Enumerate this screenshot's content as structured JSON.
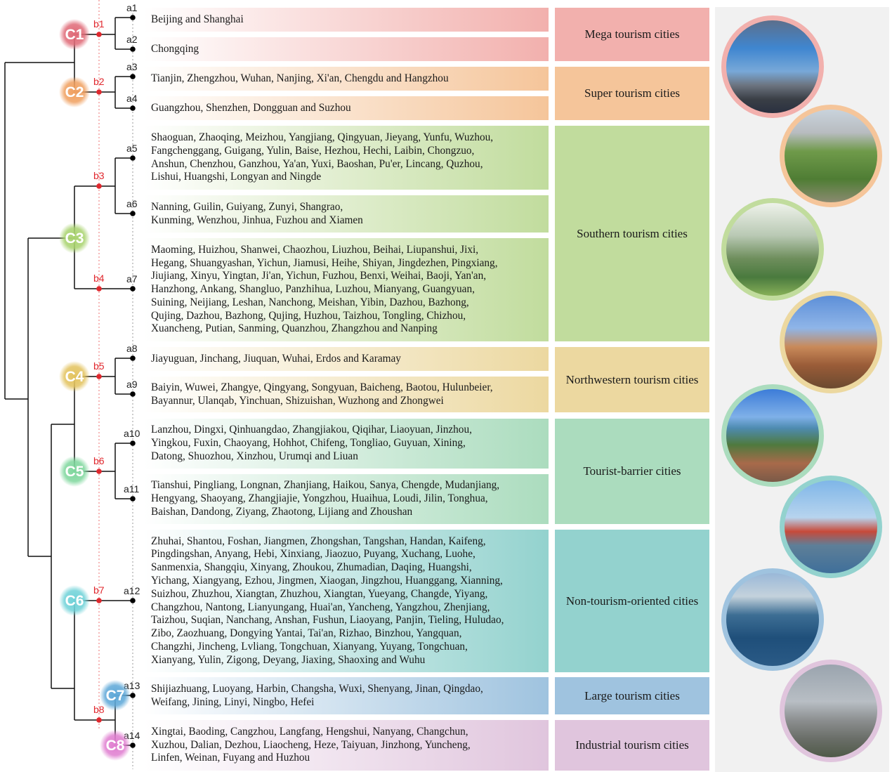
{
  "clusters": [
    {
      "id": "C1",
      "color": "#e06b78"
    },
    {
      "id": "C2",
      "color": "#f0a060"
    },
    {
      "id": "C3",
      "color": "#a9d36f"
    },
    {
      "id": "C4",
      "color": "#e3c35f"
    },
    {
      "id": "C5",
      "color": "#7fd79d"
    },
    {
      "id": "C6",
      "color": "#6fd2d8"
    },
    {
      "id": "C7",
      "color": "#5ea8d8"
    },
    {
      "id": "C8",
      "color": "#e07ed0"
    }
  ],
  "branch_labels": [
    "b1",
    "b2",
    "b3",
    "b4",
    "b5",
    "b6",
    "b7",
    "b8"
  ],
  "rows": [
    {
      "id": "a1",
      "cat": 0,
      "text": "Beijing and Shanghai"
    },
    {
      "id": "a2",
      "cat": 0,
      "text": "Chongqing"
    },
    {
      "id": "a3",
      "cat": 1,
      "text": "Tianjin, Zhengzhou, Wuhan, Nanjing, Xi'an, Chengdu and Hangzhou"
    },
    {
      "id": "a4",
      "cat": 1,
      "text": "Guangzhou, Shenzhen, Dongguan and Suzhou"
    },
    {
      "id": "a5",
      "cat": 2,
      "text": "Shaoguan, Zhaoqing, Meizhou, Yangjiang, Qingyuan, Jieyang, Yunfu, Wuzhou,\nFangchenggang, Guigang, Yulin, Baise, Hezhou, Hechi, Laibin, Chongzuo,\nAnshun, Chenzhou, Ganzhou, Ya'an, Yuxi, Baoshan, Pu'er, Lincang, Quzhou,\nLishui, Huangshi, Longyan and Ningde"
    },
    {
      "id": "a6",
      "cat": 2,
      "text": "Nanning, Guilin, Guiyang, Zunyi, Shangrao,\nKunming, Wenzhou, Jinhua, Fuzhou and Xiamen"
    },
    {
      "id": "a7",
      "cat": 2,
      "text": "Maoming, Huizhou, Shanwei, Chaozhou, Liuzhou, Beihai, Liupanshui, Jixi,\nHegang, Shuangyashan, Yichun, Jiamusi, Heihe, Shiyan, Jingdezhen, Pingxiang,\nJiujiang, Xinyu, Yingtan, Ji'an, Yichun, Fuzhou, Benxi, Weihai, Baoji, Yan'an,\nHanzhong, Ankang, Shangluo, Panzhihua, Luzhou, Mianyang, Guangyuan,\nSuining, Neijiang, Leshan, Nanchong, Meishan, Yibin, Dazhou, Bazhong,\nQujing, Dazhou, Bazhong, Qujing, Huzhou, Taizhou, Tongling, Chizhou,\nXuancheng, Putian, Sanming, Quanzhou, Zhangzhou and Nanping"
    },
    {
      "id": "a8",
      "cat": 3,
      "text": "Jiayuguan, Jinchang, Jiuquan, Wuhai, Erdos and Karamay"
    },
    {
      "id": "a9",
      "cat": 3,
      "text": "Baiyin, Wuwei, Zhangye, Qingyang, Songyuan, Baicheng, Baotou, Hulunbeier,\nBayannur, Ulanqab, Yinchuan, Shizuishan, Wuzhong and Zhongwei"
    },
    {
      "id": "a10",
      "cat": 4,
      "text": "Lanzhou, Dingxi, Qinhuangdao, Zhangjiakou, Qiqihar, Liaoyuan, Jinzhou,\nYingkou, Fuxin, Chaoyang, Hohhot, Chifeng, Tongliao, Guyuan, Xining,\nDatong, Shuozhou, Xinzhou, Urumqi and Liuan"
    },
    {
      "id": "a11",
      "cat": 4,
      "text": "Tianshui, Pingliang, Longnan, Zhanjiang, Haikou, Sanya, Chengde, Mudanjiang,\nHengyang, Shaoyang, Zhangjiajie, Yongzhou, Huaihua, Loudi, Jilin, Tonghua,\nBaishan, Dandong, Ziyang, Zhaotong, Lijiang and Zhoushan"
    },
    {
      "id": "a12",
      "cat": 5,
      "text": "Zhuhai, Shantou, Foshan, Jiangmen, Zhongshan, Tangshan, Handan, Kaifeng,\nPingdingshan, Anyang, Hebi, Xinxiang, Jiaozuo, Puyang, Xuchang, Luohe,\nSanmenxia, Shangqiu, Xinyang, Zhoukou, Zhumadian, Daqing, Huangshi,\nYichang, Xiangyang, Ezhou, Jingmen, Xiaogan, Jingzhou, Huanggang, Xianning,\nSuizhou, Zhuzhou, Xiangtan, Zhuzhou, Xiangtan, Yueyang, Changde, Yiyang,\nChangzhou, Nantong, Lianyungang, Huai'an, Yancheng, Yangzhou, Zhenjiang,\nTaizhou, Suqian, Nanchang, Anshan, Fushun, Liaoyang, Panjin, Tieling, Huludao,\nZibo, Zaozhuang, Dongying Yantai, Tai'an, Rizhao, Binzhou, Yangquan,\nChangzhi, Jincheng, Lvliang, Tongchuan, Xianyang, Yuyang, Tongchuan,\nXianyang, Yulin, Zigong, Deyang, Jiaxing, Shaoxing and Wuhu"
    },
    {
      "id": "a13",
      "cat": 6,
      "text": "Shijiazhuang, Luoyang, Harbin, Changsha, Wuxi, Shenyang, Jinan, Qingdao,\nWeifang, Jining, Linyi, Ningbo, Hefei"
    },
    {
      "id": "a14",
      "cat": 7,
      "text": "Xingtai, Baoding, Cangzhou, Langfang, Hengshui, Nanyang, Changchun,\nXuzhou, Dalian, Dezhou, Liaocheng, Heze, Taiyuan, Jinzhong, Yuncheng,\nLinfen, Weinan, Fuyang and Huzhou"
    }
  ],
  "categories": [
    {
      "label": "Mega tourism cities",
      "color": "#f2b0ad"
    },
    {
      "label": "Super tourism cities",
      "color": "#f5c59a"
    },
    {
      "label": "Southern tourism cities",
      "color": "#c1dc9d"
    },
    {
      "label": "Northwestern tourism cities",
      "color": "#ecd8a0"
    },
    {
      "label": "Tourist-barrier cities",
      "color": "#abdcbe"
    },
    {
      "label": "Non-tourism-oriented cities",
      "color": "#93d2ce"
    },
    {
      "label": "Large tourism cities",
      "color": "#9fc3df"
    },
    {
      "label": "Industrial tourism cities",
      "color": "#e0c5dd"
    }
  ],
  "photos": [
    {
      "subject": "city-skyline",
      "ring": "#f2b0ad"
    },
    {
      "subject": "pagoda",
      "ring": "#f5c59a"
    },
    {
      "subject": "karst-mountains",
      "ring": "#c1dc9d"
    },
    {
      "subject": "desert",
      "ring": "#ecd8a0"
    },
    {
      "subject": "coastal-town",
      "ring": "#abdcbe"
    },
    {
      "subject": "port-cranes",
      "ring": "#93d2ce"
    },
    {
      "subject": "harbor-city",
      "ring": "#9fc3df"
    },
    {
      "subject": "industrial-plant",
      "ring": "#e0c5dd"
    }
  ]
}
